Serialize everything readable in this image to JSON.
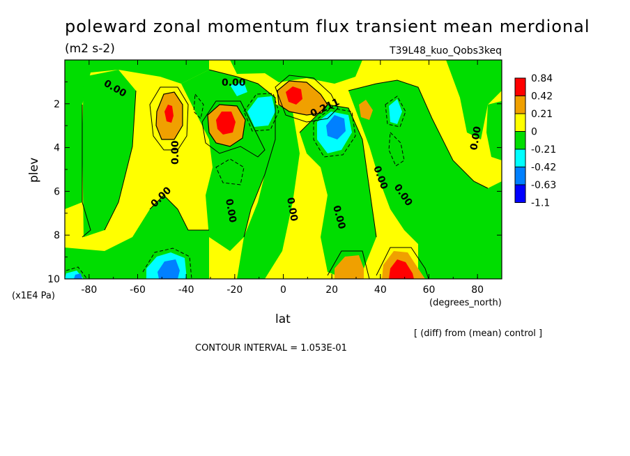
{
  "chart_data": {
    "type": "heatmap",
    "title": "poleward zonal momentum flux transient mean merdional",
    "units": "(m2 s-2)",
    "experiment": "T39L48_kuo_Qobs3keq",
    "xlabel": "lat",
    "x_units": "(degrees_north)",
    "ylabel": "plev",
    "y_units": "(x1E4 Pa)",
    "xlim": [
      -90,
      90
    ],
    "ylim": [
      10,
      0
    ],
    "x_ticks": [
      "-80",
      "-60",
      "-40",
      "-20",
      "0",
      "20",
      "40",
      "60",
      "80"
    ],
    "y_ticks": [
      "2",
      "4",
      "6",
      "8",
      "10"
    ],
    "note": "[ (diff) from (mean) control ]",
    "contour_interval": "CONTOUR INTERVAL = 1.053E-01",
    "contour_labels": [
      "0.00",
      "0.00",
      "0.00",
      "0.00",
      "0.00",
      "0.00",
      "0.00",
      "0.00",
      "0.00",
      "0.00",
      "0.211"
    ],
    "legend": {
      "labels": [
        "0.84",
        "0.42",
        "0.21",
        "0",
        "-0.21",
        "-0.42",
        "-0.63",
        "-1.1"
      ],
      "colors": [
        "#ff0000",
        "#f0a000",
        "#ffff00",
        "#00dd00",
        "#00ffff",
        "#0080ff",
        "#0000ff"
      ]
    },
    "features": [
      {
        "lat": -50,
        "plev": 2.5,
        "value": 0.6
      },
      {
        "lat": -25,
        "plev": 2.8,
        "value": 0.9
      },
      {
        "lat": 5,
        "plev": 1.7,
        "value": 0.8
      },
      {
        "lat": 24,
        "plev": 3.0,
        "value": -0.7
      },
      {
        "lat": -48,
        "plev": 9.7,
        "value": -0.7
      },
      {
        "lat": 47,
        "plev": 9.8,
        "value": 0.7
      },
      {
        "lat": -10,
        "plev": 1.5,
        "value": -0.3
      },
      {
        "lat": 58,
        "plev": 2.3,
        "value": -0.3
      }
    ]
  }
}
